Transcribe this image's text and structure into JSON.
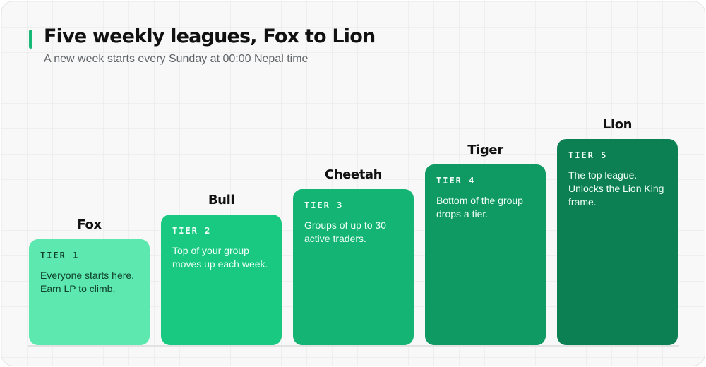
{
  "header": {
    "title": "Five weekly leagues, Fox to Lion",
    "subtitle": "A new week starts every Sunday at 00:00 Nepal time"
  },
  "colors": {
    "accent": "#17b977",
    "tier_fills": [
      "#5ce8ae",
      "#19c982",
      "#14b574",
      "#0f9963",
      "#0c8052"
    ]
  },
  "tiers": [
    {
      "name": "Fox",
      "label": "TIER 1",
      "desc": "Everyone starts here. Earn LP to climb."
    },
    {
      "name": "Bull",
      "label": "TIER 2",
      "desc": "Top of your group moves up each week."
    },
    {
      "name": "Cheetah",
      "label": "TIER 3",
      "desc": "Groups of up to 30 active traders."
    },
    {
      "name": "Tiger",
      "label": "TIER 4",
      "desc": "Bottom of the group drops a tier."
    },
    {
      "name": "Lion",
      "label": "TIER 5",
      "desc": "The top league. Unlocks the Lion King frame."
    }
  ]
}
